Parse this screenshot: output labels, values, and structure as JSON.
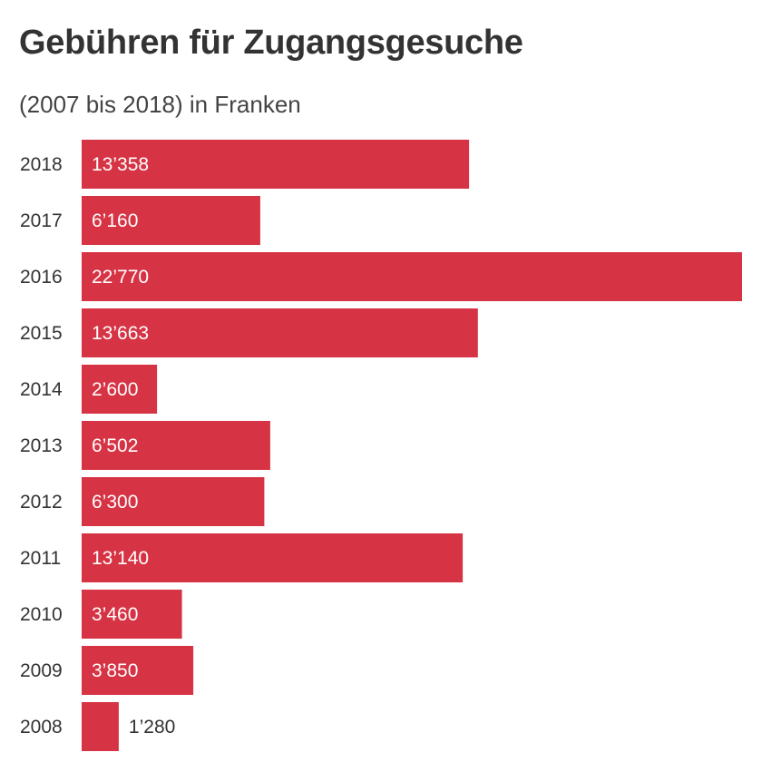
{
  "chart_data": {
    "type": "bar",
    "orientation": "horizontal",
    "title": "Gebühren für Zugangsgesuche",
    "subtitle": "(2007 bis 2018) in Franken",
    "categories": [
      "2018",
      "2017",
      "2016",
      "2015",
      "2014",
      "2013",
      "2012",
      "2011",
      "2010",
      "2009",
      "2008"
    ],
    "values": [
      13358,
      6160,
      22770,
      13663,
      2600,
      6502,
      6300,
      13140,
      3460,
      3850,
      1280
    ],
    "value_labels": [
      "13’358",
      "6’160",
      "22’770",
      "13’663",
      "2’600",
      "6’502",
      "6’300",
      "13’140",
      "3’460",
      "3’850",
      "1’280"
    ],
    "xlim": [
      0,
      22770
    ],
    "grid": false,
    "legend": "none",
    "colors": {
      "bar": "#d63344",
      "label_inside": "#ffffff",
      "label_outside": "#333333"
    }
  }
}
